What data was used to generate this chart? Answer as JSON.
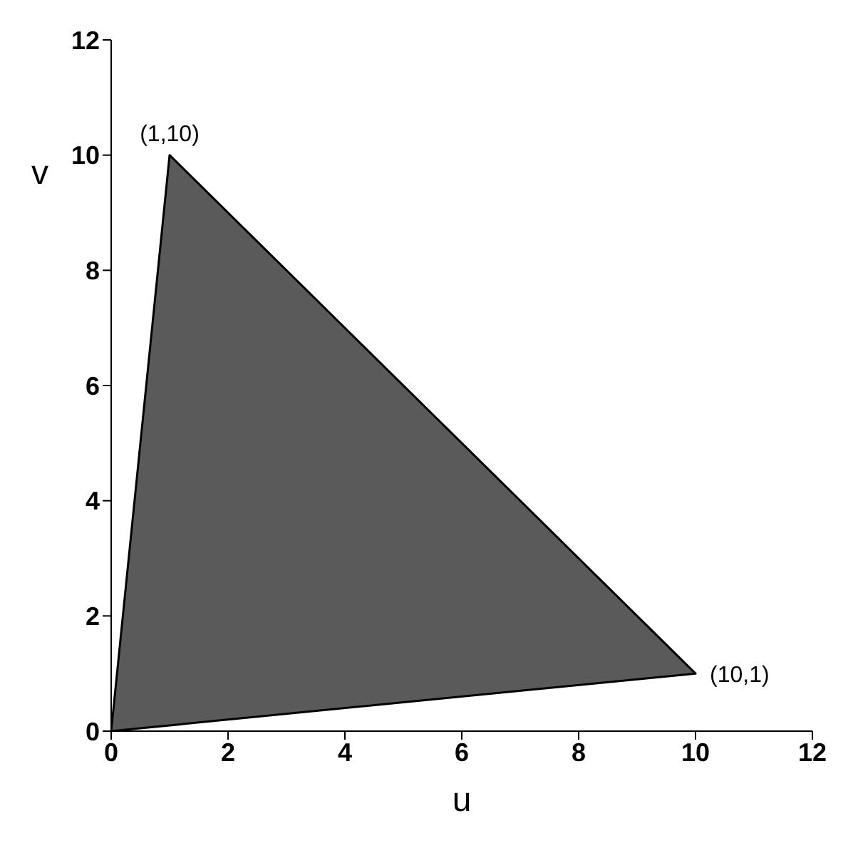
{
  "chart_data": {
    "type": "area",
    "xlabel": "u",
    "ylabel": "v",
    "series": [
      {
        "color": "#5a5a5a",
        "x": [
          0,
          1,
          10,
          0
        ],
        "values": [
          0,
          10,
          1,
          0
        ]
      }
    ],
    "xlim": [
      0,
      12
    ],
    "xticks": [
      0,
      2,
      4,
      6,
      8,
      10,
      12
    ],
    "ylim": [
      0,
      12
    ],
    "yticks": [
      0,
      2,
      4,
      6,
      8,
      10,
      12
    ],
    "annotations": [
      {
        "text": "(1,10)",
        "x": 1,
        "y": 10
      },
      {
        "text": "(10,1)",
        "x": 10,
        "y": 1
      }
    ],
    "grid": false,
    "legend": false,
    "marker": "none"
  }
}
